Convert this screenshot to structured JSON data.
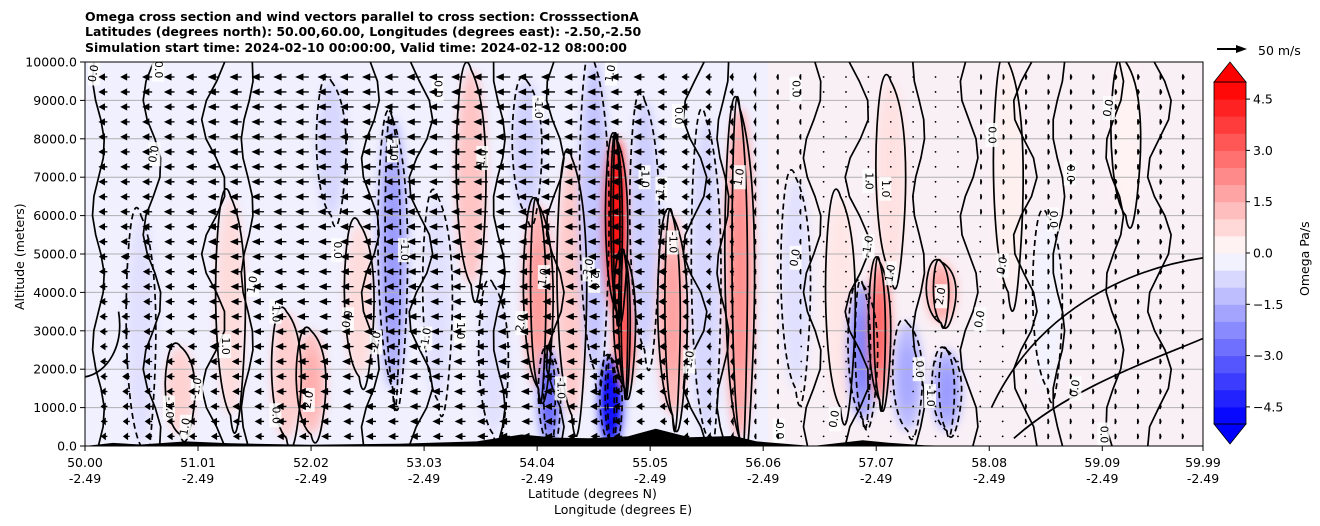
{
  "header": {
    "line1": "Omega cross section and wind vectors parallel to cross section: CrosssectionA",
    "line2": "Latitudes (degrees north): 50.00,60.00, Longitudes (degrees east): -2.50,-2.50",
    "line3": "Simulation start time: 2024-02-10 00:00:00, Valid time: 2024-02-12 08:00:00"
  },
  "reference_vector": {
    "label": "50 m/s",
    "speed_ms": 50
  },
  "colors": {
    "strong_positive": "#ff0000",
    "strong_negative": "#0000ff",
    "contour": "#000000",
    "terrain": "#000000",
    "grid": "#b0b0b0"
  },
  "chart_data": {
    "type": "heatmap",
    "title": "Omega cross section and wind vectors parallel to cross section: CrosssectionA",
    "xlabel": "Latitude (degrees N)",
    "xlabel2": "Longitude (degrees E)",
    "ylabel": "Altitude (meters)",
    "colorbar_label": "Omega Pa/s",
    "xlim": [
      50.0,
      59.99
    ],
    "ylim": [
      0,
      10000
    ],
    "x_ticks": [
      {
        "lat": 50.0,
        "lat_label": "50.00",
        "lon_label": "-2.49"
      },
      {
        "lat": 51.01,
        "lat_label": "51.01",
        "lon_label": "-2.49"
      },
      {
        "lat": 52.02,
        "lat_label": "52.02",
        "lon_label": "-2.49"
      },
      {
        "lat": 53.03,
        "lat_label": "53.03",
        "lon_label": "-2.49"
      },
      {
        "lat": 54.04,
        "lat_label": "54.04",
        "lon_label": "-2.49"
      },
      {
        "lat": 55.05,
        "lat_label": "55.05",
        "lon_label": "-2.49"
      },
      {
        "lat": 56.06,
        "lat_label": "56.06",
        "lon_label": "-2.49"
      },
      {
        "lat": 57.07,
        "lat_label": "57.07",
        "lon_label": "-2.49"
      },
      {
        "lat": 58.08,
        "lat_label": "58.08",
        "lon_label": "-2.49"
      },
      {
        "lat": 59.09,
        "lat_label": "59.09",
        "lon_label": "-2.49"
      },
      {
        "lat": 59.99,
        "lat_label": "59.99",
        "lon_label": "-2.49"
      }
    ],
    "y_ticks": [
      {
        "value": 0,
        "label": "0.0"
      },
      {
        "value": 1000,
        "label": "1000.0"
      },
      {
        "value": 2000,
        "label": "2000.0"
      },
      {
        "value": 3000,
        "label": "3000.0"
      },
      {
        "value": 4000,
        "label": "4000.0"
      },
      {
        "value": 5000,
        "label": "5000.0"
      },
      {
        "value": 6000,
        "label": "6000.0"
      },
      {
        "value": 7000,
        "label": "7000.0"
      },
      {
        "value": 8000,
        "label": "8000.0"
      },
      {
        "value": 9000,
        "label": "9000.0"
      },
      {
        "value": 10000,
        "label": "10000.0"
      }
    ],
    "colorbar": {
      "min": -5.0,
      "max": 5.0,
      "step": 0.5,
      "extend": "both",
      "ticks": [
        {
          "value": -4.5,
          "label": "−4.5"
        },
        {
          "value": -3.0,
          "label": "−3.0"
        },
        {
          "value": -1.5,
          "label": "−1.5"
        },
        {
          "value": 0.0,
          "label": "0.0"
        },
        {
          "value": 1.5,
          "label": "1.5"
        },
        {
          "value": 3.0,
          "label": "3.0"
        },
        {
          "value": 4.5,
          "label": "4.5"
        }
      ]
    },
    "omega_features": [
      {
        "lat": 50.5,
        "z0": 0,
        "z1": 6000,
        "omega": -0.6
      },
      {
        "lat": 50.85,
        "z0": 300,
        "z1": 2600,
        "omega": 0.9
      },
      {
        "lat": 51.3,
        "z0": 800,
        "z1": 6500,
        "omega": 0.7
      },
      {
        "lat": 51.8,
        "z0": 200,
        "z1": 3500,
        "omega": 1.0
      },
      {
        "lat": 52.02,
        "z0": 300,
        "z1": 3000,
        "omega": 1.3
      },
      {
        "lat": 52.2,
        "z0": 6000,
        "z1": 9500,
        "omega": -0.8
      },
      {
        "lat": 52.45,
        "z0": 1800,
        "z1": 5800,
        "omega": 0.7
      },
      {
        "lat": 52.75,
        "z0": 1500,
        "z1": 8500,
        "omega": -1.6
      },
      {
        "lat": 53.15,
        "z0": 1200,
        "z1": 6500,
        "omega": -0.6
      },
      {
        "lat": 53.45,
        "z0": 4200,
        "z1": 9800,
        "omega": 1.2
      },
      {
        "lat": 53.65,
        "z0": 300,
        "z1": 4200,
        "omega": -0.6
      },
      {
        "lat": 53.95,
        "z0": 6000,
        "z1": 9500,
        "omega": -0.9
      },
      {
        "lat": 54.05,
        "z0": 1500,
        "z1": 6300,
        "omega": 1.6
      },
      {
        "lat": 54.15,
        "z0": 0,
        "z1": 2500,
        "omega": -2.5
      },
      {
        "lat": 54.35,
        "z0": 800,
        "z1": 7500,
        "omega": 1.1
      },
      {
        "lat": 54.55,
        "z0": 2000,
        "z1": 10000,
        "omega": -1.2
      },
      {
        "lat": 54.7,
        "z0": 0,
        "z1": 2300,
        "omega": -5.2
      },
      {
        "lat": 54.75,
        "z0": 3500,
        "z1": 8000,
        "omega": 4.8
      },
      {
        "lat": 54.82,
        "z0": 1500,
        "z1": 5000,
        "omega": 2.8
      },
      {
        "lat": 55.0,
        "z0": 2500,
        "z1": 9000,
        "omega": -1.0
      },
      {
        "lat": 55.25,
        "z0": 800,
        "z1": 6000,
        "omega": 1.5
      },
      {
        "lat": 55.55,
        "z0": 300,
        "z1": 8500,
        "omega": -0.8
      },
      {
        "lat": 55.85,
        "z0": 200,
        "z1": 8800,
        "omega": 1.8
      },
      {
        "lat": 56.35,
        "z0": 1500,
        "z1": 7000,
        "omega": -0.6
      },
      {
        "lat": 56.75,
        "z0": 1000,
        "z1": 6500,
        "omega": 0.5
      },
      {
        "lat": 56.95,
        "z0": 700,
        "z1": 4200,
        "omega": -2.0
      },
      {
        "lat": 57.1,
        "z0": 1200,
        "z1": 4800,
        "omega": 2.5
      },
      {
        "lat": 57.2,
        "z0": 4500,
        "z1": 9500,
        "omega": 0.6
      },
      {
        "lat": 57.35,
        "z0": 400,
        "z1": 3200,
        "omega": -1.4
      },
      {
        "lat": 57.65,
        "z0": 3200,
        "z1": 4800,
        "omega": 1.5
      },
      {
        "lat": 57.7,
        "z0": 400,
        "z1": 2500,
        "omega": -1.6
      },
      {
        "lat": 58.25,
        "z0": 4000,
        "z1": 10000,
        "omega": 0.3
      },
      {
        "lat": 58.6,
        "z0": 1500,
        "z1": 6000,
        "omega": -0.25
      },
      {
        "lat": 59.3,
        "z0": 6000,
        "z1": 10000,
        "omega": 0.25
      }
    ],
    "wind_profile": [
      {
        "lat": 50.0,
        "u": -12
      },
      {
        "lat": 52.0,
        "u": -20
      },
      {
        "lat": 54.0,
        "u": -22
      },
      {
        "lat": 55.0,
        "u": -16
      },
      {
        "lat": 56.0,
        "u": -4
      },
      {
        "lat": 57.0,
        "u": 0
      },
      {
        "lat": 58.5,
        "u": 3
      },
      {
        "lat": 59.99,
        "u": 4
      }
    ],
    "terrain": [
      {
        "lat": 50.0,
        "z": 0
      },
      {
        "lat": 50.25,
        "z": 80
      },
      {
        "lat": 50.5,
        "z": 40
      },
      {
        "lat": 50.9,
        "z": 120
      },
      {
        "lat": 51.3,
        "z": 70
      },
      {
        "lat": 52.0,
        "z": 30
      },
      {
        "lat": 52.8,
        "z": 60
      },
      {
        "lat": 53.5,
        "z": 120
      },
      {
        "lat": 53.9,
        "z": 300
      },
      {
        "lat": 54.2,
        "z": 220
      },
      {
        "lat": 54.5,
        "z": 200
      },
      {
        "lat": 54.85,
        "z": 250
      },
      {
        "lat": 55.1,
        "z": 450
      },
      {
        "lat": 55.4,
        "z": 230
      },
      {
        "lat": 55.8,
        "z": 260
      },
      {
        "lat": 56.0,
        "z": 120
      },
      {
        "lat": 56.5,
        "z": 0
      },
      {
        "lat": 56.95,
        "z": 150
      },
      {
        "lat": 57.2,
        "z": 80
      },
      {
        "lat": 57.5,
        "z": 20
      },
      {
        "lat": 57.8,
        "z": 0
      },
      {
        "lat": 59.99,
        "z": 0
      }
    ],
    "contour_labels": [
      {
        "lat": 50.08,
        "z": 9700,
        "text": "0.0"
      },
      {
        "lat": 50.65,
        "z": 9800,
        "text": "0.0"
      },
      {
        "lat": 50.62,
        "z": 7600,
        "text": "0.0"
      },
      {
        "lat": 50.75,
        "z": 1000,
        "text": "-1.0"
      },
      {
        "lat": 50.9,
        "z": 500,
        "text": "1.0"
      },
      {
        "lat": 51.25,
        "z": 2600,
        "text": "1.0"
      },
      {
        "lat": 51.5,
        "z": 4200,
        "text": "1.0"
      },
      {
        "lat": 51.7,
        "z": 3500,
        "text": "-1.0"
      },
      {
        "lat": 51.0,
        "z": 1500,
        "text": "-1.0"
      },
      {
        "lat": 51.7,
        "z": 800,
        "text": "0.0"
      },
      {
        "lat": 52.0,
        "z": 1200,
        "text": "2.0"
      },
      {
        "lat": 52.25,
        "z": 5100,
        "text": "0.0"
      },
      {
        "lat": 52.35,
        "z": 3300,
        "text": "0.0"
      },
      {
        "lat": 52.75,
        "z": 7700,
        "text": "-1.0"
      },
      {
        "lat": 52.6,
        "z": 2700,
        "text": "-2.0"
      },
      {
        "lat": 52.85,
        "z": 5100,
        "text": "-1.0"
      },
      {
        "lat": 53.05,
        "z": 2800,
        "text": "-1.0"
      },
      {
        "lat": 53.15,
        "z": 9300,
        "text": "0.0"
      },
      {
        "lat": 53.55,
        "z": 7500,
        "text": "1.0"
      },
      {
        "lat": 53.35,
        "z": 3000,
        "text": "1.0"
      },
      {
        "lat": 53.9,
        "z": 3200,
        "text": "2.0"
      },
      {
        "lat": 54.05,
        "z": 8800,
        "text": "-1.0"
      },
      {
        "lat": 54.1,
        "z": 4400,
        "text": "1.0"
      },
      {
        "lat": 54.25,
        "z": 1500,
        "text": "-1.0"
      },
      {
        "lat": 54.5,
        "z": 4600,
        "text": "-3.0"
      },
      {
        "lat": 54.55,
        "z": 4300,
        "text": "2.0"
      },
      {
        "lat": 54.7,
        "z": 9700,
        "text": "1.0"
      },
      {
        "lat": 55.0,
        "z": 7000,
        "text": "-1.0"
      },
      {
        "lat": 55.15,
        "z": 6700,
        "text": "-1.0"
      },
      {
        "lat": 55.25,
        "z": 5300,
        "text": "-1.0"
      },
      {
        "lat": 55.4,
        "z": 2200,
        "text": "-1.0"
      },
      {
        "lat": 55.3,
        "z": 8600,
        "text": "0.0"
      },
      {
        "lat": 55.85,
        "z": 7000,
        "text": "1.0"
      },
      {
        "lat": 56.35,
        "z": 9300,
        "text": "0.0"
      },
      {
        "lat": 56.35,
        "z": 4900,
        "text": "0.0"
      },
      {
        "lat": 56.2,
        "z": 400,
        "text": "0.0"
      },
      {
        "lat": 56.7,
        "z": 700,
        "text": "0.0"
      },
      {
        "lat": 57.0,
        "z": 6900,
        "text": "1.0"
      },
      {
        "lat": 57.0,
        "z": 5200,
        "text": "-1.0"
      },
      {
        "lat": 57.15,
        "z": 6700,
        "text": "1.0"
      },
      {
        "lat": 57.2,
        "z": 4500,
        "text": "1.0"
      },
      {
        "lat": 57.45,
        "z": 2000,
        "text": "0.0"
      },
      {
        "lat": 57.65,
        "z": 3900,
        "text": "2.0"
      },
      {
        "lat": 57.55,
        "z": 1300,
        "text": "-1.0"
      },
      {
        "lat": 58.0,
        "z": 3300,
        "text": "0.0"
      },
      {
        "lat": 58.1,
        "z": 8100,
        "text": "0.0"
      },
      {
        "lat": 58.2,
        "z": 4700,
        "text": "0.0"
      },
      {
        "lat": 58.65,
        "z": 5900,
        "text": "0.0"
      },
      {
        "lat": 59.15,
        "z": 8800,
        "text": "0.0"
      },
      {
        "lat": 58.8,
        "z": 7100,
        "text": "0.0"
      },
      {
        "lat": 58.85,
        "z": 1500,
        "text": "0.0"
      },
      {
        "lat": 59.1,
        "z": 300,
        "text": "0.0"
      }
    ]
  }
}
